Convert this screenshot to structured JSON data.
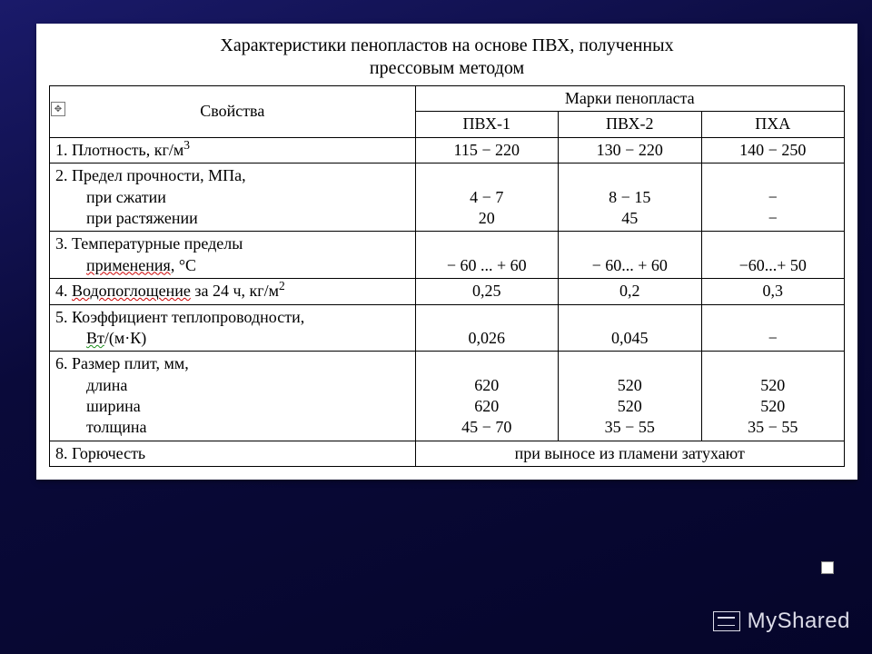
{
  "background": {
    "gradient_from": "#1a1a6a",
    "gradient_to": "#05052a"
  },
  "card_bg": "#ffffff",
  "border_color": "#000000",
  "text_color": "#000000",
  "font_family": "Times New Roman",
  "title_fontsize_pt": 15,
  "cell_fontsize_pt": 14,
  "title_line1": "Характеристики пенопластов на основе ПВХ, полученных",
  "title_line2": "прессовым методом",
  "header": {
    "properties": "Свойства",
    "brands": "Марки пенопласта",
    "col1": "ПВХ-1",
    "col2": "ПВХ-2",
    "col3": "ПХА"
  },
  "col_widths_pct": [
    46,
    18,
    18,
    18
  ],
  "rows": [
    {
      "label_plain": "1. Плотность, кг/м",
      "label_sup": "3",
      "c1": "115 − 220",
      "c2": "130 − 220",
      "c3": "140 − 250"
    },
    {
      "multiline": true,
      "lines": [
        {
          "text": "2. Предел прочности, МПа,"
        },
        {
          "text": "при сжатии",
          "indent": true
        },
        {
          "text": "при растяжении",
          "indent": true
        }
      ],
      "c1_lines": [
        "",
        "4 − 7",
        "20"
      ],
      "c2_lines": [
        "",
        "8 − 15",
        "45"
      ],
      "c3_lines": [
        "",
        "−",
        "−"
      ]
    },
    {
      "multiline": true,
      "lines": [
        {
          "text": "3. Температурные пределы"
        },
        {
          "text": "применения, °С",
          "indent": true,
          "wave": "red",
          "wave_word": "применения"
        }
      ],
      "c1_lines": [
        "",
        "− 60 ... + 60"
      ],
      "c2_lines": [
        "",
        "− 60... + 60"
      ],
      "c3_lines": [
        "",
        "−60...+ 50"
      ]
    },
    {
      "label_html": "4. Водопоглощение за 24 ч, кг/м",
      "label_sup": "2",
      "wave_word": "Водопоглощение",
      "c1": "0,25",
      "c2": "0,2",
      "c3": "0,3"
    },
    {
      "multiline": true,
      "lines": [
        {
          "text": "5. Коэффициент теплопроводности,"
        },
        {
          "html": "Вт/(м·К)",
          "indent": true,
          "wave": "green",
          "wave_word": "Вт"
        }
      ],
      "c1_lines": [
        "",
        "0,026"
      ],
      "c2_lines": [
        "",
        "0,045"
      ],
      "c3_lines": [
        "",
        "−"
      ]
    },
    {
      "multiline": true,
      "lines": [
        {
          "text": "6. Размер плит, мм,"
        },
        {
          "text": "длина",
          "indent": true
        },
        {
          "text": "ширина",
          "indent": true
        },
        {
          "text": "толщина",
          "indent": true
        }
      ],
      "c1_lines": [
        "",
        "620",
        "620",
        "45 − 70"
      ],
      "c2_lines": [
        "",
        "520",
        "520",
        "35 − 55"
      ],
      "c3_lines": [
        "",
        "520",
        "520",
        "35 − 55"
      ]
    },
    {
      "label_plain": "8. Горючесть",
      "span_text": "при выносе из пламени затухают",
      "span_cols": 3
    }
  ],
  "watermark": "MyShared"
}
